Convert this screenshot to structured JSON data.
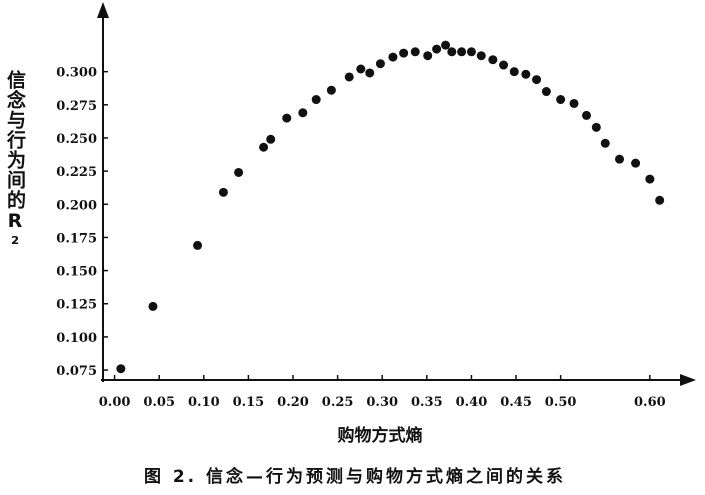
{
  "chart_data": {
    "type": "scatter",
    "x_label": "购物方式熵",
    "y_label": "信念与行为间的R²",
    "caption": "图 2. 信念—行为预测与购物方式熵之间的关系",
    "color": "#111111",
    "xlim": [
      -0.013,
      0.645
    ],
    "ylim": [
      0.0675,
      0.348
    ],
    "xticks": [
      {
        "value": 0,
        "label": "0.00"
      },
      {
        "value": 0.05,
        "label": "0.05"
      },
      {
        "value": 0.1,
        "label": "0.10"
      },
      {
        "value": 0.15,
        "label": "0.15"
      },
      {
        "value": 0.2,
        "label": "0.20"
      },
      {
        "value": 0.25,
        "label": "0.25"
      },
      {
        "value": 0.3,
        "label": "0.30"
      },
      {
        "value": 0.35,
        "label": "0.35"
      },
      {
        "value": 0.4,
        "label": "0.40"
      },
      {
        "value": 0.45,
        "label": "0.45"
      },
      {
        "value": 0.5,
        "label": "0.50"
      },
      {
        "value": 0.6,
        "label": "0.60"
      }
    ],
    "yticks": [
      {
        "value": 0.075,
        "label": "0.075"
      },
      {
        "value": 0.1,
        "label": "0.100"
      },
      {
        "value": 0.125,
        "label": "0.125"
      },
      {
        "value": 0.15,
        "label": "0.150"
      },
      {
        "value": 0.175,
        "label": "0.175"
      },
      {
        "value": 0.2,
        "label": "0.200"
      },
      {
        "value": 0.225,
        "label": "0.225"
      },
      {
        "value": 0.25,
        "label": "0.250"
      },
      {
        "value": 0.275,
        "label": "0.275"
      },
      {
        "value": 0.3,
        "label": "0.300"
      }
    ],
    "x": [
      0.007,
      0.043,
      0.093,
      0.122,
      0.139,
      0.167,
      0.175,
      0.193,
      0.211,
      0.226,
      0.243,
      0.263,
      0.276,
      0.286,
      0.298,
      0.312,
      0.324,
      0.337,
      0.351,
      0.361,
      0.371,
      0.378,
      0.389,
      0.4,
      0.411,
      0.424,
      0.436,
      0.448,
      0.461,
      0.473,
      0.484,
      0.5,
      0.515,
      0.529,
      0.54,
      0.55,
      0.566,
      0.584,
      0.6,
      0.611
    ],
    "values": [
      0.076,
      0.123,
      0.169,
      0.209,
      0.224,
      0.243,
      0.249,
      0.265,
      0.269,
      0.279,
      0.286,
      0.296,
      0.302,
      0.299,
      0.306,
      0.311,
      0.314,
      0.315,
      0.312,
      0.317,
      0.32,
      0.315,
      0.315,
      0.315,
      0.312,
      0.309,
      0.305,
      0.3,
      0.298,
      0.294,
      0.285,
      0.279,
      0.276,
      0.267,
      0.258,
      0.246,
      0.234,
      0.231,
      0.219,
      0.203
    ]
  }
}
